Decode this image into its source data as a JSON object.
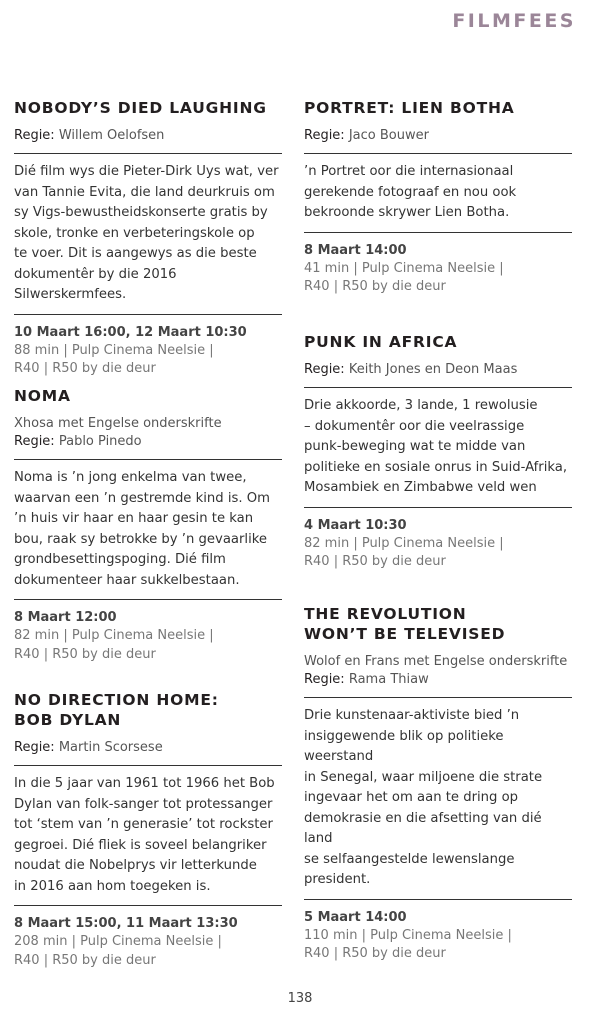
{
  "header": {
    "title": "FILMFEES"
  },
  "regie_label": "Regie:",
  "films": [
    {
      "column": "left",
      "title": [
        "NOBODY’S DIED LAUGHING"
      ],
      "subtitle": "",
      "director": "Willem Oelofsen",
      "description": [
        "Dié film wys die Pieter-Dirk Uys wat, ver",
        "van Tannie Evita, die land deurkruis om",
        "sy Vigs-bewustheidskonserte gratis by",
        "skole, tronke en verbeteringskole op",
        "te voer. Dit is aangewys as die beste",
        "dokumentêr by die 2016 Silwerskermfees."
      ],
      "dates": "10 Maart 16:00, 12 Maart 10:30",
      "meta": [
        "88 min | Pulp Cinema Neelsie |",
        "R40 | R50 by die deur"
      ]
    },
    {
      "column": "left",
      "title": [
        "NOMA"
      ],
      "subtitle": "Xhosa met Engelse onderskrifte",
      "director": "Pablo Pinedo",
      "description": [
        "Noma is ’n jong enkelma van twee,",
        "waarvan een ’n gestremde kind is. Om",
        "’n huis vir haar en haar gesin te kan",
        "bou, raak sy betrokke by ’n gevaarlike",
        "grondbesettingspoging. Dié film",
        "dokumenteer haar sukkelbestaan."
      ],
      "dates": "8 Maart 12:00",
      "meta": [
        "82 min | Pulp Cinema Neelsie |",
        "R40 | R50 by die deur"
      ]
    },
    {
      "column": "left",
      "title": [
        "NO DIRECTION HOME:",
        "BOB DYLAN"
      ],
      "subtitle": "",
      "director": "Martin Scorsese",
      "description": [
        "In die 5 jaar van 1961 tot 1966 het Bob",
        "Dylan van folk-sanger tot protessanger",
        "tot ‘stem van ’n generasie’ tot rockster",
        "gegroei. Dié fliek is soveel belangriker",
        "noudat die Nobelprys vir letterkunde",
        "in 2016 aan hom toegeken is."
      ],
      "dates": "8 Maart 15:00, 11 Maart 13:30",
      "meta": [
        "208 min | Pulp Cinema Neelsie |",
        "R40 | R50 by die deur"
      ]
    },
    {
      "column": "right",
      "title": [
        "PORTRET: LIEN BOTHA"
      ],
      "subtitle": "",
      "director": "Jaco Bouwer",
      "description": [
        "’n Portret oor die internasionaal",
        "gerekende fotograaf en nou ook",
        "bekroonde skrywer Lien Botha."
      ],
      "dates": "8 Maart 14:00",
      "meta": [
        "41 min | Pulp Cinema Neelsie |",
        "R40 | R50 by die deur"
      ]
    },
    {
      "column": "right",
      "title": [
        "PUNK IN AFRICA"
      ],
      "subtitle": "",
      "director": "Keith Jones en Deon Maas",
      "description": [
        "Drie akkoorde, 3 lande, 1 rewolusie",
        "– dokumentêr oor die veelrassige",
        "punk-beweging wat te midde van",
        "politieke en sosiale onrus in Suid-Afrika,",
        "Mosambiek en Zimbabwe veld wen"
      ],
      "dates": "4 Maart 10:30",
      "meta": [
        "82 min | Pulp Cinema Neelsie |",
        "R40 | R50 by die deur"
      ]
    },
    {
      "column": "right",
      "title": [
        "THE REVOLUTION",
        "WON’T BE TELEVISED"
      ],
      "subtitle": "Wolof en Frans met Engelse onderskrifte",
      "director": "Rama Thiaw",
      "description": [
        "Drie kunstenaar-aktiviste bied ’n",
        "insiggewende blik op politieke weerstand",
        "in Senegal, waar miljoene die strate",
        "ingevaar het om aan te dring op",
        "demokrasie en die afsetting van dié land",
        "se selfaangestelde lewenslange president."
      ],
      "dates": "5 Maart 14:00",
      "meta": [
        "110 min | Pulp Cinema Neelsie |",
        "R40 | R50 by die deur"
      ]
    }
  ],
  "page_number": "138"
}
